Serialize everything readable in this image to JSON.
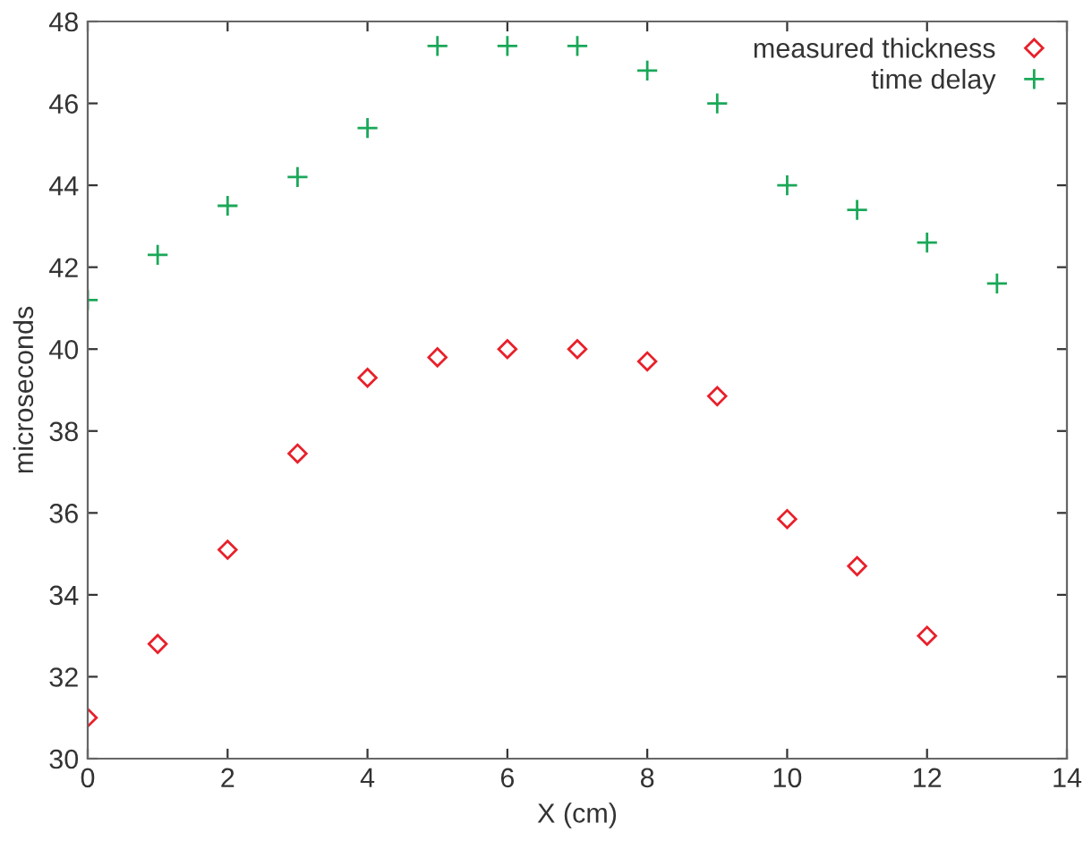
{
  "chart_data": {
    "type": "scatter",
    "xlabel": "X (cm)",
    "ylabel": "microseconds",
    "xlim": [
      0,
      14
    ],
    "xticks": [
      0,
      2,
      4,
      6,
      8,
      10,
      12,
      14
    ],
    "ylim": [
      30,
      48
    ],
    "yticks": [
      30,
      32,
      34,
      36,
      38,
      40,
      42,
      44,
      46,
      48
    ],
    "grid": false,
    "legend": "top right",
    "series": [
      {
        "name": "measured thickness",
        "color": "#e8202a",
        "marker": "diamond",
        "x": [
          0,
          1,
          2,
          3,
          4,
          5,
          6,
          7,
          8,
          9,
          10,
          11,
          12
        ],
        "values": [
          31.0,
          32.8,
          35.1,
          37.45,
          39.3,
          39.8,
          40.0,
          40.0,
          39.7,
          38.85,
          35.85,
          34.7,
          33.0
        ]
      },
      {
        "name": "time delay",
        "color": "#1aa858",
        "marker": "cross",
        "x": [
          0,
          1,
          2,
          3,
          4,
          5,
          6,
          7,
          8,
          9,
          10,
          11,
          12,
          13
        ],
        "values": [
          41.2,
          42.3,
          43.5,
          44.2,
          45.4,
          47.4,
          47.4,
          47.4,
          46.8,
          46.0,
          44.0,
          43.4,
          42.6,
          41.6
        ]
      }
    ]
  }
}
